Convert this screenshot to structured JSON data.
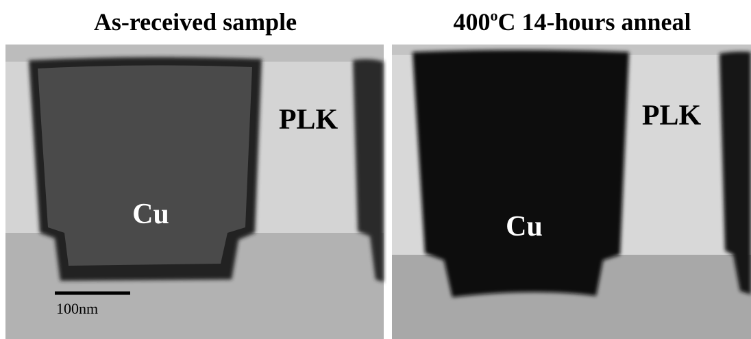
{
  "panels": [
    {
      "title": {
        "text": "As-received sample"
      },
      "labels": {
        "matrix": "PLK",
        "metal": "Cu"
      },
      "scale_bar": "100nm"
    },
    {
      "title": {
        "text": "400",
        "sup": "o",
        "rest": "C 14-hours anneal"
      },
      "labels": {
        "matrix": "PLK",
        "metal": "Cu"
      }
    }
  ]
}
